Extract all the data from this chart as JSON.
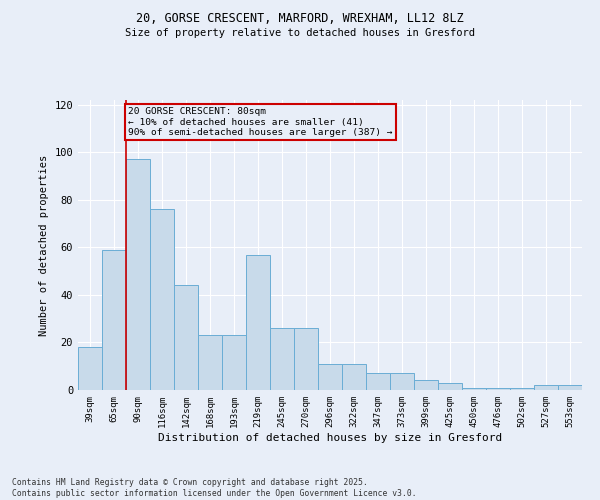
{
  "title1": "20, GORSE CRESCENT, MARFORD, WREXHAM, LL12 8LZ",
  "title2": "Size of property relative to detached houses in Gresford",
  "xlabel": "Distribution of detached houses by size in Gresford",
  "ylabel": "Number of detached properties",
  "categories": [
    "39sqm",
    "65sqm",
    "90sqm",
    "116sqm",
    "142sqm",
    "168sqm",
    "193sqm",
    "219sqm",
    "245sqm",
    "270sqm",
    "296sqm",
    "322sqm",
    "347sqm",
    "373sqm",
    "399sqm",
    "425sqm",
    "450sqm",
    "476sqm",
    "502sqm",
    "527sqm",
    "553sqm"
  ],
  "bar_heights": [
    18,
    59,
    97,
    76,
    44,
    23,
    23,
    57,
    26,
    26,
    11,
    11,
    7,
    7,
    4,
    3,
    1,
    1,
    1,
    2,
    2
  ],
  "bar_color": "#c8daea",
  "bar_edge_color": "#6aadd5",
  "bg_color": "#e8eef8",
  "grid_color": "#ffffff",
  "vline_x": 1.5,
  "vline_color": "#cc0000",
  "annotation_text": "20 GORSE CRESCENT: 80sqm\n← 10% of detached houses are smaller (41)\n90% of semi-detached houses are larger (387) →",
  "annotation_box_color": "#cc0000",
  "footer": "Contains HM Land Registry data © Crown copyright and database right 2025.\nContains public sector information licensed under the Open Government Licence v3.0.",
  "ylim": [
    0,
    122
  ],
  "yticks": [
    0,
    20,
    40,
    60,
    80,
    100,
    120
  ]
}
